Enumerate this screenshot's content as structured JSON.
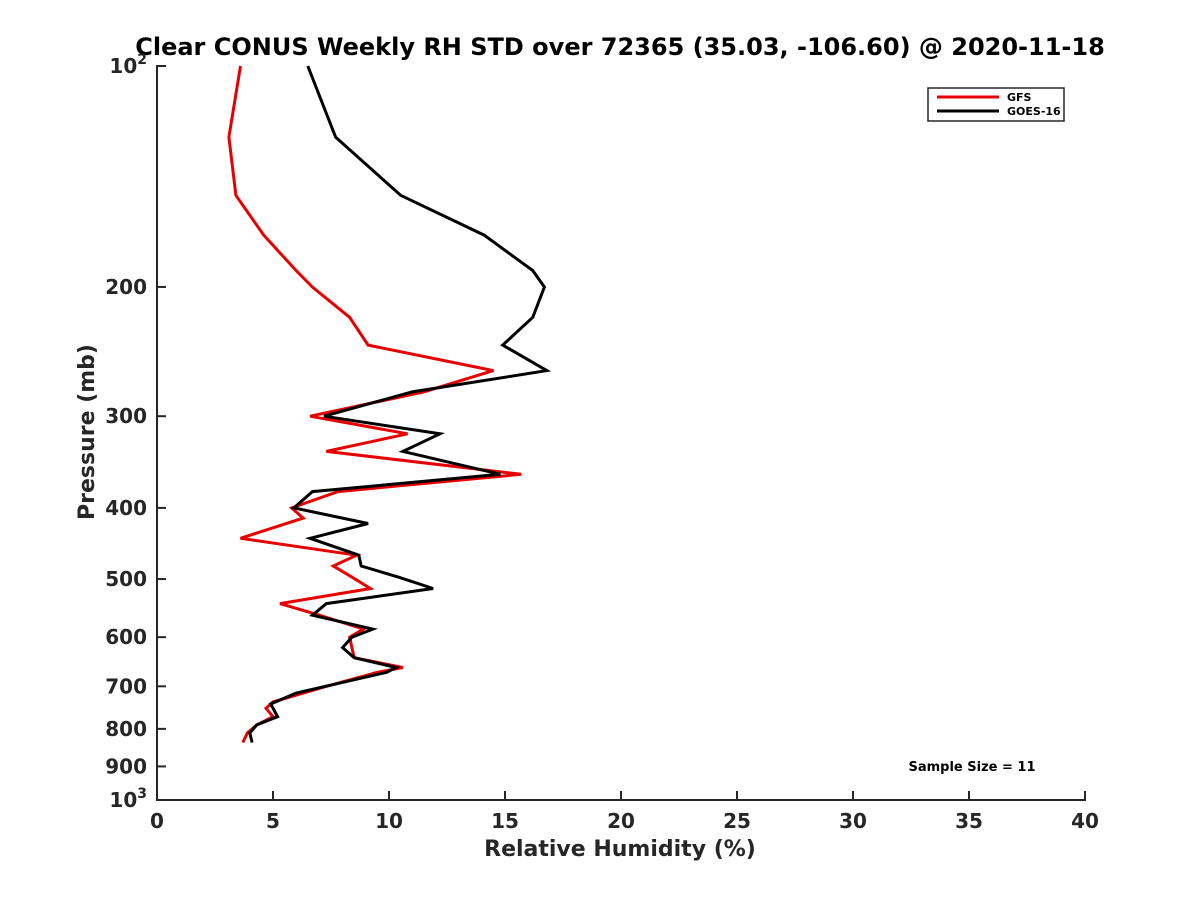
{
  "chart_data": {
    "type": "line",
    "title": "Clear CONUS Weekly RH STD over 72365 (35.03, -106.60) @ 2020-11-18",
    "xlabel": "Relative Humidity (%)",
    "ylabel": "Pressure (mb)",
    "xlim": [
      0,
      40
    ],
    "ylim": [
      100,
      1000
    ],
    "yscale": "log",
    "y_reversed": true,
    "grid": false,
    "legend_position": "top-right",
    "x_ticks": [
      0,
      5,
      10,
      15,
      20,
      25,
      30,
      35,
      40
    ],
    "x_tick_labels": [
      "0",
      "5",
      "10",
      "15",
      "20",
      "25",
      "30",
      "35",
      "40"
    ],
    "y_ticks": [
      100,
      200,
      300,
      400,
      500,
      600,
      700,
      800,
      900,
      1000
    ],
    "y_tick_labels": [
      {
        "base": "10",
        "exp": "2"
      },
      {
        "base": "200",
        "exp": ""
      },
      {
        "base": "300",
        "exp": ""
      },
      {
        "base": "400",
        "exp": ""
      },
      {
        "base": "500",
        "exp": ""
      },
      {
        "base": "600",
        "exp": ""
      },
      {
        "base": "700",
        "exp": ""
      },
      {
        "base": "800",
        "exp": ""
      },
      {
        "base": "900",
        "exp": ""
      },
      {
        "base": "10",
        "exp": "3"
      }
    ],
    "annotation": "Sample Size = 11",
    "series": [
      {
        "name": "GFS",
        "color": "#e60000",
        "points": [
          [
            3.6,
            100
          ],
          [
            3.1,
            125
          ],
          [
            3.4,
            150
          ],
          [
            4.6,
            170
          ],
          [
            6.0,
            190
          ],
          [
            6.7,
            200
          ],
          [
            8.3,
            220
          ],
          [
            9.1,
            240
          ],
          [
            14.5,
            260
          ],
          [
            11.5,
            278
          ],
          [
            6.6,
            300
          ],
          [
            10.8,
            317
          ],
          [
            7.3,
            335
          ],
          [
            15.7,
            360
          ],
          [
            7.8,
            380
          ],
          [
            5.8,
            400
          ],
          [
            6.3,
            413
          ],
          [
            3.6,
            440
          ],
          [
            8.6,
            464
          ],
          [
            7.6,
            480
          ],
          [
            8.4,
            497
          ],
          [
            9.2,
            515
          ],
          [
            5.3,
            540
          ],
          [
            7.0,
            560
          ],
          [
            8.9,
            585
          ],
          [
            8.3,
            600
          ],
          [
            8.4,
            620
          ],
          [
            8.5,
            640
          ],
          [
            10.6,
            660
          ],
          [
            9.5,
            670
          ],
          [
            7.3,
            700
          ],
          [
            5.0,
            735
          ],
          [
            4.7,
            750
          ],
          [
            5.0,
            770
          ],
          [
            4.3,
            790
          ],
          [
            3.9,
            810
          ],
          [
            3.7,
            835
          ]
        ]
      },
      {
        "name": "GOES-16",
        "color": "#000000",
        "points": [
          [
            6.5,
            100
          ],
          [
            7.7,
            125
          ],
          [
            10.5,
            150
          ],
          [
            14.1,
            170
          ],
          [
            16.2,
            190
          ],
          [
            16.7,
            200
          ],
          [
            16.2,
            220
          ],
          [
            14.9,
            240
          ],
          [
            16.8,
            260
          ],
          [
            11.0,
            278
          ],
          [
            7.2,
            300
          ],
          [
            12.2,
            317
          ],
          [
            10.6,
            335
          ],
          [
            14.8,
            360
          ],
          [
            6.7,
            380
          ],
          [
            5.9,
            400
          ],
          [
            9.1,
            420
          ],
          [
            6.6,
            440
          ],
          [
            8.7,
            464
          ],
          [
            8.8,
            480
          ],
          [
            10.4,
            497
          ],
          [
            11.9,
            515
          ],
          [
            7.3,
            540
          ],
          [
            6.7,
            560
          ],
          [
            9.3,
            585
          ],
          [
            8.4,
            600
          ],
          [
            8.0,
            620
          ],
          [
            8.5,
            640
          ],
          [
            10.3,
            660
          ],
          [
            9.9,
            670
          ],
          [
            6.0,
            715
          ],
          [
            4.9,
            740
          ],
          [
            5.2,
            770
          ],
          [
            4.3,
            790
          ],
          [
            4.0,
            810
          ],
          [
            4.1,
            835
          ]
        ]
      }
    ]
  }
}
